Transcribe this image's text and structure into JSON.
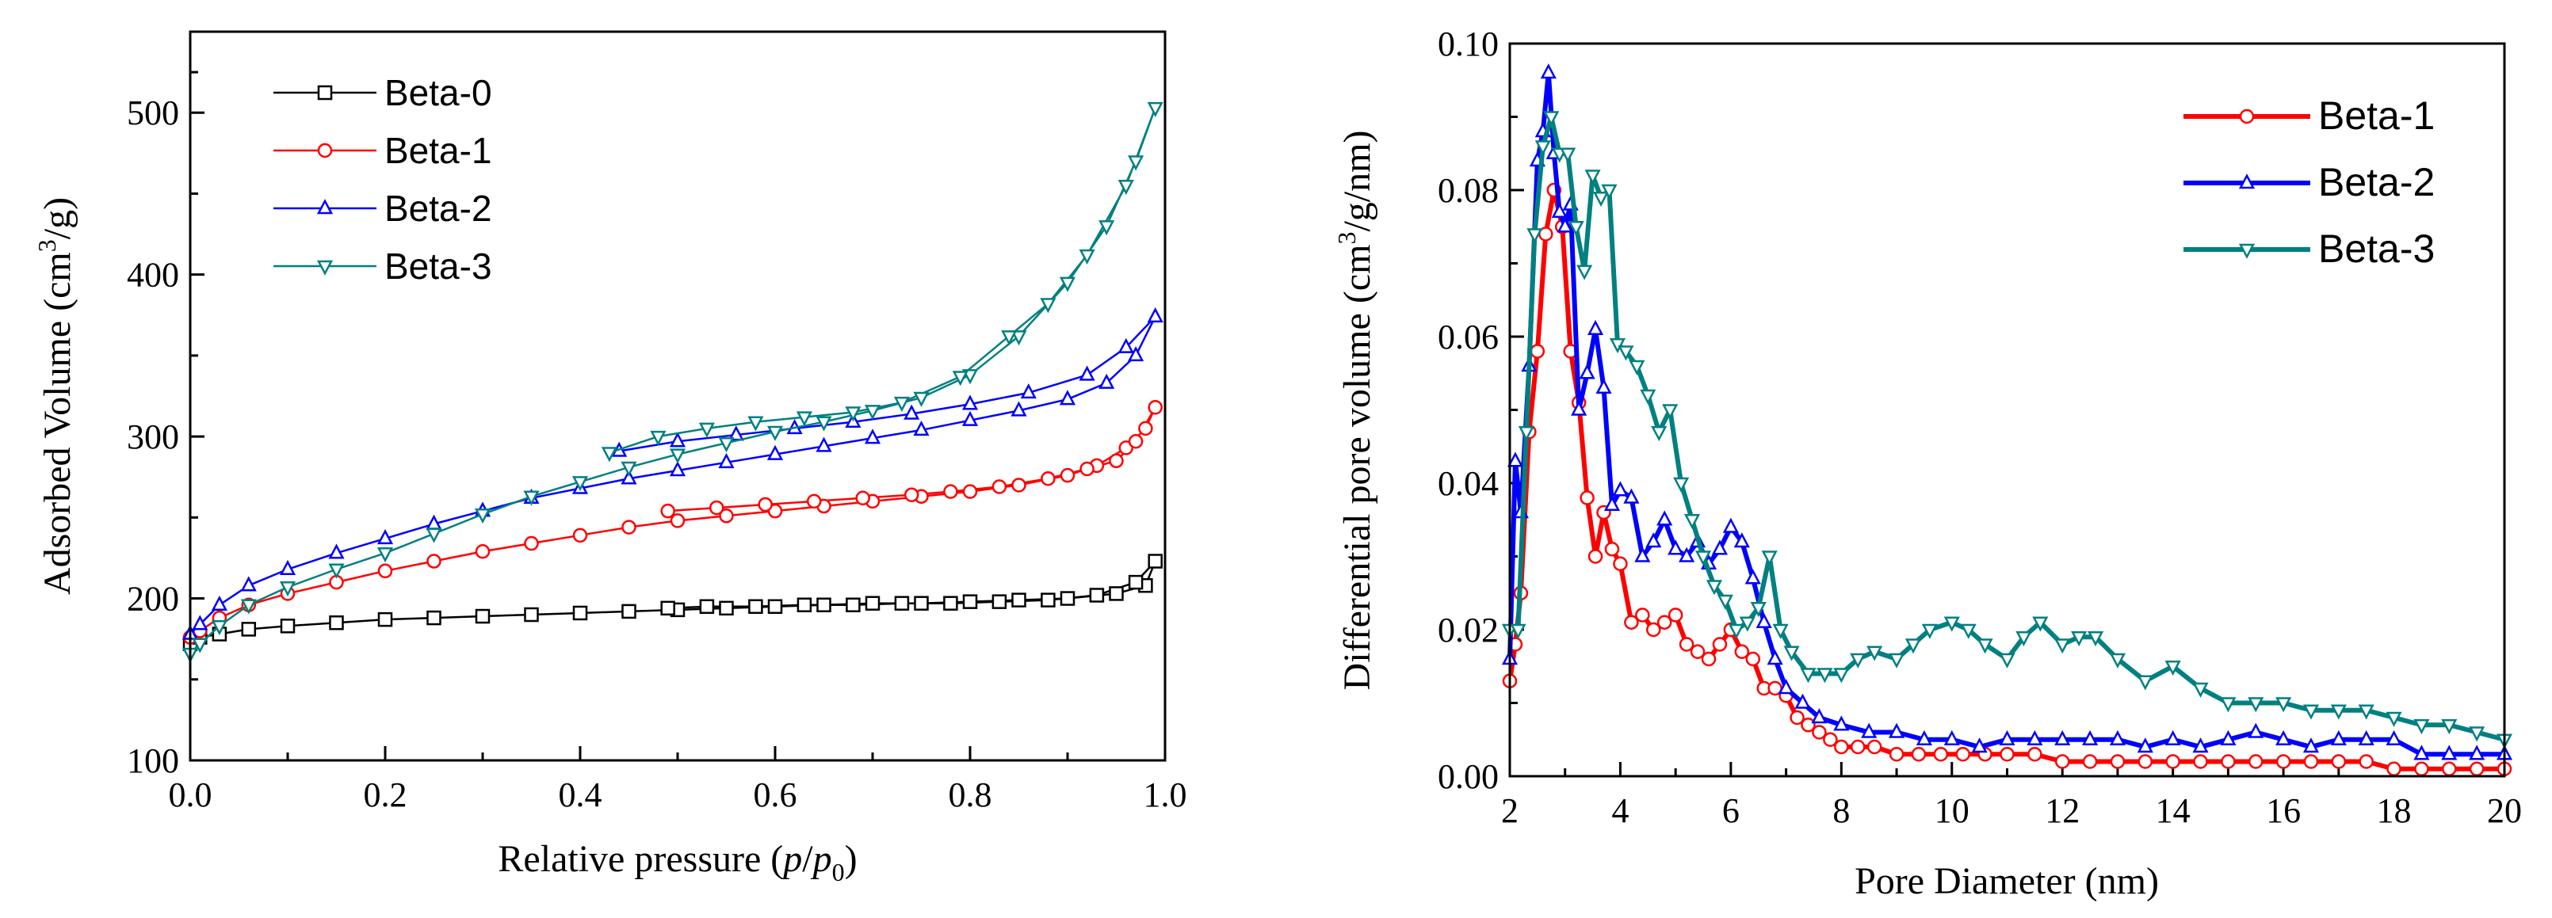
{
  "chart_data": [
    {
      "type": "line",
      "xlabel": "Relative pressure (p/p0)",
      "xlabel_parts": {
        "pre": "Relative pressure (",
        "p": "p",
        "slash": "/",
        "p0": "p",
        "sub": "0",
        "post": ")"
      },
      "ylabel": "Adsorbed Volume (cm3/g)",
      "ylabel_parts": {
        "pre": "Adsorbed Volume (cm",
        "sup": "3",
        "post": "/g)"
      },
      "xlim": [
        0.0,
        1.0
      ],
      "ylim": [
        100,
        550
      ],
      "xticks": [
        "0.0",
        "0.2",
        "0.4",
        "0.6",
        "0.8",
        "1.0"
      ],
      "yticks": [
        "100",
        "200",
        "300",
        "400",
        "500"
      ],
      "legend_position": "top-left",
      "series": [
        {
          "name": "Beta-0",
          "color": "#000000",
          "marker": "square",
          "x": [
            0.0,
            0.01,
            0.03,
            0.06,
            0.1,
            0.15,
            0.2,
            0.25,
            0.3,
            0.35,
            0.4,
            0.45,
            0.5,
            0.55,
            0.6,
            0.65,
            0.7,
            0.75,
            0.8,
            0.85,
            0.9,
            0.95,
            0.98,
            0.99,
            0.97,
            0.93,
            0.88,
            0.83,
            0.78,
            0.73,
            0.68,
            0.63,
            0.58,
            0.53,
            0.49
          ],
          "y": [
            172,
            176,
            178,
            181,
            183,
            185,
            187,
            188,
            189,
            190,
            191,
            192,
            193,
            194,
            195,
            196,
            197,
            197,
            198,
            199,
            200,
            203,
            208,
            223,
            210,
            202,
            199,
            198,
            197,
            197,
            196,
            196,
            195,
            195,
            194
          ]
        },
        {
          "name": "Beta-1",
          "color": "#ff0000",
          "marker": "circle",
          "x": [
            0.0,
            0.01,
            0.03,
            0.06,
            0.1,
            0.15,
            0.2,
            0.25,
            0.3,
            0.35,
            0.4,
            0.45,
            0.5,
            0.55,
            0.6,
            0.65,
            0.7,
            0.75,
            0.8,
            0.85,
            0.9,
            0.93,
            0.96,
            0.98,
            0.99,
            0.97,
            0.95,
            0.92,
            0.88,
            0.83,
            0.78,
            0.74,
            0.69,
            0.64,
            0.59,
            0.54,
            0.49
          ],
          "y": [
            176,
            180,
            188,
            196,
            203,
            210,
            217,
            223,
            229,
            234,
            239,
            244,
            248,
            251,
            254,
            257,
            260,
            263,
            266,
            270,
            276,
            282,
            293,
            305,
            318,
            297,
            285,
            280,
            274,
            269,
            266,
            264,
            262,
            260,
            258,
            256,
            254
          ]
        },
        {
          "name": "Beta-2",
          "color": "#0000ff",
          "marker": "triangle-up",
          "x": [
            0.0,
            0.01,
            0.03,
            0.06,
            0.1,
            0.15,
            0.2,
            0.25,
            0.3,
            0.35,
            0.4,
            0.45,
            0.5,
            0.55,
            0.6,
            0.65,
            0.7,
            0.75,
            0.8,
            0.85,
            0.9,
            0.94,
            0.97,
            0.99,
            0.96,
            0.92,
            0.86,
            0.8,
            0.74,
            0.68,
            0.62,
            0.56,
            0.5,
            0.44
          ],
          "y": [
            178,
            184,
            196,
            208,
            218,
            228,
            237,
            246,
            254,
            262,
            268,
            274,
            279,
            284,
            289,
            294,
            299,
            304,
            310,
            316,
            323,
            333,
            350,
            374,
            355,
            338,
            327,
            320,
            314,
            309,
            305,
            301,
            297,
            291
          ]
        },
        {
          "name": "Beta-3",
          "color": "#008080",
          "marker": "triangle-down",
          "x": [
            0.0,
            0.01,
            0.03,
            0.06,
            0.1,
            0.15,
            0.2,
            0.25,
            0.3,
            0.35,
            0.4,
            0.45,
            0.5,
            0.55,
            0.6,
            0.65,
            0.7,
            0.75,
            0.8,
            0.85,
            0.9,
            0.94,
            0.97,
            0.99,
            0.96,
            0.92,
            0.88,
            0.84,
            0.79,
            0.73,
            0.68,
            0.63,
            0.58,
            0.53,
            0.48,
            0.43
          ],
          "y": [
            166,
            172,
            183,
            196,
            207,
            218,
            228,
            240,
            252,
            263,
            272,
            281,
            289,
            296,
            303,
            309,
            316,
            324,
            338,
            362,
            395,
            430,
            470,
            503,
            455,
            412,
            382,
            362,
            337,
            321,
            315,
            312,
            309,
            305,
            300,
            290
          ]
        }
      ]
    },
    {
      "type": "line",
      "xlabel": "Pore Diameter (nm)",
      "ylabel": "Differential pore volume (cm3/g/nm)",
      "ylabel_parts": {
        "pre": "Differential pore volume (cm",
        "sup": "3",
        "post": "/g/nm)"
      },
      "xlim": [
        2,
        20
      ],
      "ylim": [
        0.0,
        0.1
      ],
      "xticks": [
        "2",
        "4",
        "6",
        "8",
        "10",
        "12",
        "14",
        "16",
        "18",
        "20"
      ],
      "yticks": [
        "0.00",
        "0.02",
        "0.04",
        "0.06",
        "0.08",
        "0.10"
      ],
      "legend_position": "top-right",
      "series": [
        {
          "name": "Beta-1",
          "color": "#ff0000",
          "marker": "circle",
          "x": [
            2.0,
            2.1,
            2.2,
            2.35,
            2.5,
            2.65,
            2.8,
            2.95,
            3.1,
            3.25,
            3.4,
            3.55,
            3.7,
            3.85,
            4.0,
            4.2,
            4.4,
            4.6,
            4.8,
            5.0,
            5.2,
            5.4,
            5.6,
            5.8,
            6.0,
            6.2,
            6.4,
            6.6,
            6.8,
            7.0,
            7.2,
            7.4,
            7.6,
            7.8,
            8.0,
            8.3,
            8.6,
            9.0,
            9.4,
            9.8,
            10.2,
            10.6,
            11.0,
            11.5,
            12.0,
            12.5,
            13.0,
            13.5,
            14.0,
            14.5,
            15.0,
            15.5,
            16.0,
            16.5,
            17.0,
            17.5,
            18.0,
            18.5,
            19.0,
            19.5,
            20.0
          ],
          "y": [
            0.013,
            0.018,
            0.025,
            0.047,
            0.058,
            0.074,
            0.08,
            0.075,
            0.058,
            0.051,
            0.038,
            0.03,
            0.036,
            0.031,
            0.029,
            0.021,
            0.022,
            0.02,
            0.021,
            0.022,
            0.018,
            0.017,
            0.016,
            0.018,
            0.02,
            0.017,
            0.016,
            0.012,
            0.012,
            0.011,
            0.008,
            0.007,
            0.006,
            0.005,
            0.004,
            0.004,
            0.004,
            0.003,
            0.003,
            0.003,
            0.003,
            0.003,
            0.003,
            0.003,
            0.002,
            0.002,
            0.002,
            0.002,
            0.002,
            0.002,
            0.002,
            0.002,
            0.002,
            0.002,
            0.002,
            0.002,
            0.001,
            0.001,
            0.001,
            0.001,
            0.001
          ]
        },
        {
          "name": "Beta-2",
          "color": "#0000ff",
          "marker": "triangle-up",
          "x": [
            2.0,
            2.1,
            2.2,
            2.35,
            2.5,
            2.6,
            2.7,
            2.8,
            2.9,
            3.0,
            3.1,
            3.25,
            3.4,
            3.55,
            3.7,
            3.85,
            4.0,
            4.2,
            4.4,
            4.6,
            4.8,
            5.0,
            5.2,
            5.4,
            5.6,
            5.8,
            6.0,
            6.2,
            6.4,
            6.6,
            6.8,
            7.0,
            7.3,
            7.6,
            8.0,
            8.5,
            9.0,
            9.5,
            10.0,
            10.5,
            11.0,
            11.5,
            12.0,
            12.5,
            13.0,
            13.5,
            14.0,
            14.5,
            15.0,
            15.5,
            16.0,
            16.5,
            17.0,
            17.5,
            18.0,
            18.5,
            19.0,
            19.5,
            20.0
          ],
          "y": [
            0.016,
            0.043,
            0.036,
            0.056,
            0.084,
            0.088,
            0.096,
            0.085,
            0.077,
            0.075,
            0.078,
            0.05,
            0.055,
            0.061,
            0.053,
            0.037,
            0.039,
            0.038,
            0.03,
            0.032,
            0.035,
            0.031,
            0.03,
            0.032,
            0.029,
            0.031,
            0.034,
            0.032,
            0.027,
            0.021,
            0.016,
            0.012,
            0.01,
            0.008,
            0.007,
            0.006,
            0.006,
            0.005,
            0.005,
            0.004,
            0.005,
            0.005,
            0.005,
            0.005,
            0.005,
            0.004,
            0.005,
            0.004,
            0.005,
            0.006,
            0.005,
            0.004,
            0.005,
            0.005,
            0.005,
            0.003,
            0.003,
            0.003,
            0.003
          ]
        },
        {
          "name": "Beta-3",
          "color": "#008080",
          "marker": "triangle-down",
          "x": [
            2.0,
            2.15,
            2.3,
            2.45,
            2.6,
            2.75,
            2.9,
            3.05,
            3.2,
            3.35,
            3.5,
            3.65,
            3.8,
            3.95,
            4.1,
            4.3,
            4.5,
            4.7,
            4.9,
            5.1,
            5.3,
            5.5,
            5.7,
            5.9,
            6.1,
            6.3,
            6.5,
            6.7,
            6.9,
            7.1,
            7.4,
            7.7,
            8.0,
            8.3,
            8.6,
            9.0,
            9.3,
            9.6,
            10.0,
            10.3,
            10.6,
            11.0,
            11.3,
            11.6,
            12.0,
            12.3,
            12.6,
            13.0,
            13.5,
            14.0,
            14.5,
            15.0,
            15.5,
            16.0,
            16.5,
            17.0,
            17.5,
            18.0,
            18.5,
            19.0,
            19.5,
            20.0
          ],
          "y": [
            0.02,
            0.02,
            0.047,
            0.074,
            0.086,
            0.09,
            0.085,
            0.085,
            0.075,
            0.069,
            0.082,
            0.079,
            0.08,
            0.059,
            0.058,
            0.056,
            0.052,
            0.047,
            0.05,
            0.04,
            0.035,
            0.03,
            0.026,
            0.024,
            0.02,
            0.021,
            0.023,
            0.03,
            0.02,
            0.017,
            0.014,
            0.014,
            0.014,
            0.016,
            0.017,
            0.016,
            0.018,
            0.02,
            0.021,
            0.02,
            0.018,
            0.016,
            0.019,
            0.021,
            0.018,
            0.019,
            0.019,
            0.016,
            0.013,
            0.015,
            0.012,
            0.01,
            0.01,
            0.01,
            0.009,
            0.009,
            0.009,
            0.008,
            0.007,
            0.007,
            0.006,
            0.005
          ]
        }
      ]
    }
  ]
}
